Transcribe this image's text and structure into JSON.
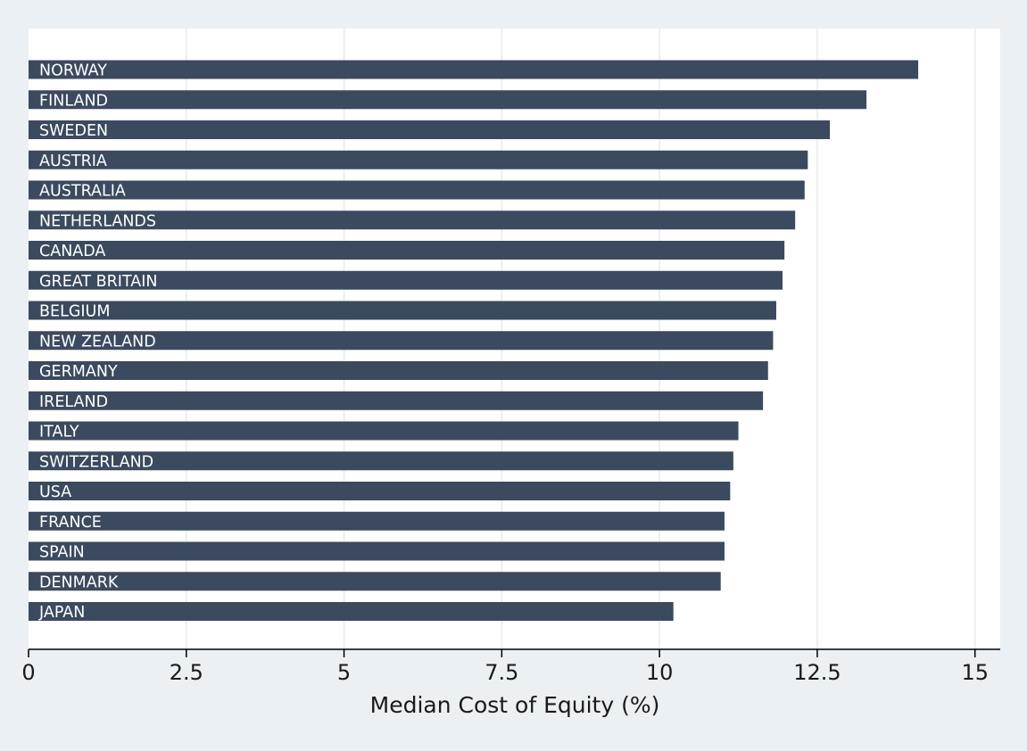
{
  "chart_data": {
    "type": "bar",
    "orientation": "horizontal",
    "categories": [
      "NORWAY",
      "FINLAND",
      "SWEDEN",
      "AUSTRIA",
      "AUSTRALIA",
      "NETHERLANDS",
      "CANADA",
      "GREAT BRITAIN",
      "BELGIUM",
      "NEW ZEALAND",
      "GERMANY",
      "IRELAND",
      "ITALY",
      "SWITZERLAND",
      "USA",
      "FRANCE",
      "SPAIN",
      "DENMARK",
      "JAPAN"
    ],
    "values": [
      14.1,
      13.28,
      12.7,
      12.35,
      12.3,
      12.15,
      11.98,
      11.95,
      11.85,
      11.8,
      11.72,
      11.64,
      11.25,
      11.17,
      11.12,
      11.03,
      11.03,
      10.97,
      10.22
    ],
    "xlabel": "Median Cost of Equity (%)",
    "ylabel": "",
    "title": "",
    "xlim": [
      0,
      15.4
    ],
    "xticks": [
      0,
      2.5,
      5,
      7.5,
      10,
      12.5,
      15
    ],
    "xtick_labels": [
      "0",
      "2.5",
      "5",
      "7.5",
      "10",
      "12.5",
      "15"
    ],
    "grid": "vertical",
    "legend": "none",
    "colors": {
      "bar": "#3b4a5e",
      "bar_label": "#ffffff",
      "plot_background": "#ffffff",
      "outer_background": "#eaf0f3",
      "grid": "#e6ebef",
      "axis": "#000000"
    }
  }
}
